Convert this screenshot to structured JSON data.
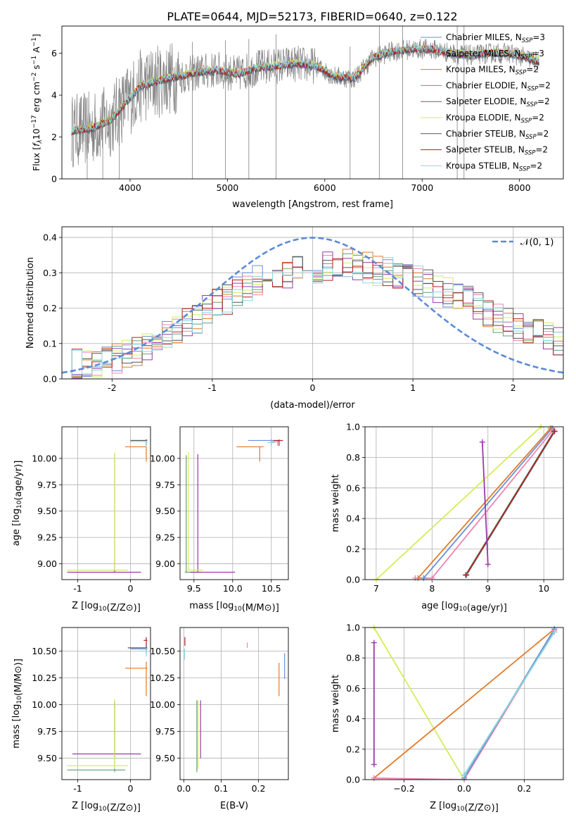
{
  "figure_title": "PLATE=0644, MJD=52173, FIBERID=0640, z=0.122",
  "colors": {
    "chabrier_miles": "#6a8ed6",
    "salpeter_miles": "#f082b4",
    "kroupa_miles": "#e07a28",
    "chabrier_elodie": "#5f9e7a",
    "salpeter_elodie": "#9a3aa8",
    "kroupa_elodie": "#d4ec5a",
    "chabrier_stelib": "#555555",
    "salpeter_stelib": "#b22020",
    "kroupa_stelib": "#86d8e2",
    "data": "#808080",
    "normal": "#5b8ad6",
    "grid": "#b0b0b0"
  },
  "chart_data": [
    {
      "id": "spectrum",
      "type": "line",
      "title": "PLATE=0644, MJD=52173, FIBERID=0640, z=0.122",
      "xlabel": "wavelength [Angstrom, rest frame]",
      "ylabel": "Flux [f_λ 10^-17 erg cm^-2 s^-1 A^-1]",
      "xlim": [
        3300,
        8450
      ],
      "ylim": [
        0,
        7.3
      ],
      "xticks": [
        4000,
        5000,
        6000,
        7000,
        8000
      ],
      "yticks": [
        0,
        2,
        4,
        6
      ],
      "grid": false,
      "legend_position": "right",
      "legend": [
        "Chabrier MILES, N_SSP=3",
        "Salpeter MILES, N_SSP=3",
        "Kroupa MILES, N_SSP=2",
        "Chabrier ELODIE, N_SSP=2",
        "Salpeter ELODIE, N_SSP=2",
        "Kroupa ELODIE, N_SSP=2",
        "Chabrier STELIB, N_SSP=2",
        "Salpeter STELIB, N_SSP=2",
        "Kroupa STELIB, N_SSP=2"
      ],
      "continuum": {
        "x": [
          3400,
          3600,
          3800,
          3950,
          4100,
          4300,
          4500,
          4700,
          4900,
          5100,
          5300,
          5500,
          5700,
          5900,
          6100,
          6300,
          6500,
          6700,
          6900,
          7100,
          7300,
          7500,
          7700,
          7900,
          8200
        ],
        "y": [
          2.3,
          2.4,
          2.8,
          3.6,
          4.4,
          4.7,
          4.9,
          5.1,
          5.2,
          5.0,
          5.3,
          5.4,
          5.5,
          5.4,
          4.9,
          4.8,
          5.8,
          6.1,
          6.2,
          6.2,
          6.0,
          5.9,
          6.0,
          6.0,
          5.6
        ]
      },
      "data_spikes_x": [
        3560,
        3720,
        3890,
        4640,
        4980,
        5220,
        5500,
        6260,
        6560,
        6800,
        7360,
        7430
      ]
    },
    {
      "id": "residuals",
      "type": "histogram",
      "xlabel": "(data-model)/error",
      "ylabel": "Normed distribution",
      "xlim": [
        -2.5,
        2.5
      ],
      "ylim": [
        0,
        0.43
      ],
      "xticks": [
        -2,
        -1,
        0,
        1,
        2
      ],
      "yticks": [
        0.0,
        0.1,
        0.2,
        0.3,
        0.4
      ],
      "grid": true,
      "legend": [
        "𝒩(0, 1)"
      ],
      "legend_position": "top-right",
      "bin_width": 0.1,
      "histogram_envelope": {
        "x": [
          -2.5,
          -2.0,
          -1.5,
          -1.0,
          -0.5,
          0.0,
          0.3,
          0.6,
          1.0,
          1.5,
          2.0,
          2.5
        ],
        "y": [
          0.035,
          0.05,
          0.11,
          0.2,
          0.29,
          0.31,
          0.33,
          0.31,
          0.28,
          0.23,
          0.15,
          0.1
        ]
      },
      "normal_curve": {
        "mean": 0,
        "sigma": 1
      }
    },
    {
      "id": "age_vs_Z",
      "type": "errorbar",
      "xlabel": "Z [log10(Z/Z⊙)]",
      "ylabel": "age [log10(age/yr)]",
      "xlim": [
        -1.3,
        0.38
      ],
      "ylim": [
        8.85,
        10.3
      ],
      "xticks": [
        -1,
        0
      ],
      "yticks": [
        9.0,
        9.25,
        9.5,
        9.75,
        10.0
      ],
      "grid": true,
      "points": [
        {
          "s": "chabrier_miles",
          "x": 0.3,
          "xe": [
            0.3,
            0.3
          ],
          "y": 10.17,
          "ye": [
            10.15,
            10.18
          ]
        },
        {
          "s": "salpeter_miles",
          "x": 0.3,
          "xe": [
            0.3,
            0.3
          ],
          "y": 10.17,
          "ye": [
            10.14,
            10.18
          ]
        },
        {
          "s": "kroupa_miles",
          "x": 0.3,
          "xe": [
            -0.1,
            0.3
          ],
          "y": 10.11,
          "ye": [
            9.97,
            10.11
          ]
        },
        {
          "s": "chabrier_elodie",
          "x": 0.3,
          "xe": [
            0.0,
            0.32
          ],
          "y": 10.17,
          "ye": [
            10.12,
            10.18
          ]
        },
        {
          "s": "salpeter_elodie",
          "x": -0.3,
          "xe": [
            -1.2,
            0.2
          ],
          "y": 8.92,
          "ye": [
            8.92,
            10.04
          ]
        },
        {
          "s": "kroupa_elodie",
          "x": -0.3,
          "xe": [
            -1.2,
            -0.05
          ],
          "y": 8.94,
          "ye": [
            8.94,
            10.06
          ]
        },
        {
          "s": "chabrier_stelib",
          "x": 0.3,
          "xe": [
            0.0,
            0.32
          ],
          "y": 10.17,
          "ye": [
            10.12,
            10.18
          ]
        },
        {
          "s": "kroupa_stelib",
          "x": 0.3,
          "xe": [
            0.0,
            0.32
          ],
          "y": 10.16,
          "ye": [
            10.12,
            10.17
          ]
        }
      ]
    },
    {
      "id": "age_vs_mass",
      "type": "errorbar",
      "xlabel": "mass [log10(M/M⊙)]",
      "ylabel": "",
      "xlim": [
        9.32,
        10.72
      ],
      "ylim": [
        8.85,
        10.3
      ],
      "xticks": [
        9.5,
        10.0,
        10.5
      ],
      "yticks": [
        9.0,
        9.25,
        9.5,
        9.75,
        10.0
      ],
      "grid": true,
      "points": [
        {
          "s": "chabrier_miles",
          "x": 10.5,
          "xe": [
            10.2,
            10.55
          ],
          "y": 10.17,
          "ye": [
            10.12,
            10.18
          ]
        },
        {
          "s": "salpeter_miles",
          "x": 10.58,
          "xe": [
            10.5,
            10.6
          ],
          "y": 10.16,
          "ye": [
            10.12,
            10.17
          ]
        },
        {
          "s": "kroupa_miles",
          "x": 10.35,
          "xe": [
            10.05,
            10.4
          ],
          "y": 10.11,
          "ye": [
            9.97,
            10.11
          ]
        },
        {
          "s": "chabrier_elodie",
          "x": 9.4,
          "xe": [
            9.38,
            9.6
          ],
          "y": 8.92,
          "ye": [
            8.92,
            10.03
          ]
        },
        {
          "s": "salpeter_elodie",
          "x": 9.55,
          "xe": [
            9.45,
            10.03
          ],
          "y": 8.92,
          "ye": [
            8.92,
            10.04
          ]
        },
        {
          "s": "kroupa_elodie",
          "x": 9.43,
          "xe": [
            9.4,
            9.62
          ],
          "y": 8.94,
          "ye": [
            8.94,
            10.06
          ]
        },
        {
          "s": "salpeter_stelib",
          "x": 10.6,
          "xe": [
            10.53,
            10.65
          ],
          "y": 10.17,
          "ye": [
            10.12,
            10.18
          ]
        },
        {
          "s": "kroupa_stelib",
          "x": 10.5,
          "xe": [
            10.45,
            10.55
          ],
          "y": 10.15,
          "ye": [
            10.12,
            10.17
          ]
        }
      ]
    },
    {
      "id": "weight_vs_age",
      "type": "line",
      "xlabel": "age [log10(age/yr)]",
      "ylabel": "mass weight",
      "xlim": [
        6.8,
        10.35
      ],
      "ylim": [
        0,
        1.0
      ],
      "xticks": [
        7,
        8,
        9,
        10
      ],
      "yticks": [
        0.0,
        0.2,
        0.4,
        0.6,
        0.8,
        1.0
      ],
      "grid": true,
      "series": [
        {
          "s": "kroupa_elodie",
          "x": [
            7.0,
            9.95
          ],
          "y": [
            0.0,
            1.0
          ]
        },
        {
          "s": "kroupa_miles",
          "x": [
            7.75,
            10.12
          ],
          "y": [
            0.01,
            0.99
          ]
        },
        {
          "s": "chabrier_miles",
          "x": [
            7.85,
            10.15
          ],
          "y": [
            0.01,
            0.99
          ]
        },
        {
          "s": "salpeter_miles",
          "x": [
            7.7,
            8.0,
            10.17
          ],
          "y": [
            0.01,
            0.01,
            0.98
          ]
        },
        {
          "s": "chabrier_elodie",
          "x": [
            8.6,
            10.18
          ],
          "y": [
            0.03,
            0.97
          ]
        },
        {
          "s": "kroupa_stelib",
          "x": [
            8.62,
            10.2
          ],
          "y": [
            0.03,
            0.97
          ]
        },
        {
          "s": "chabrier_stelib",
          "x": [
            8.61,
            10.19
          ],
          "y": [
            0.03,
            0.97
          ]
        },
        {
          "s": "salpeter_stelib",
          "x": [
            8.61,
            10.19
          ],
          "y": [
            0.03,
            0.97
          ]
        },
        {
          "s": "salpeter_elodie",
          "x": [
            8.9,
            9.0
          ],
          "y": [
            0.9,
            0.1
          ]
        }
      ]
    },
    {
      "id": "mass_vs_Z",
      "type": "errorbar",
      "xlabel": "Z [log10(Z/Z⊙)]",
      "ylabel": "mass [log10(M/M⊙)]",
      "xlim": [
        -1.3,
        0.38
      ],
      "ylim": [
        9.3,
        10.72
      ],
      "xticks": [
        -1,
        0
      ],
      "yticks": [
        9.5,
        9.75,
        10.0,
        10.25,
        10.5
      ],
      "grid": true,
      "points": [
        {
          "s": "chabrier_miles",
          "x": 0.3,
          "xe": [
            0.0,
            0.32
          ],
          "y": 10.52,
          "ye": [
            10.48,
            10.55
          ]
        },
        {
          "s": "kroupa_miles",
          "x": 0.3,
          "xe": [
            -0.1,
            0.32
          ],
          "y": 10.34,
          "ye": [
            10.08,
            10.4
          ]
        },
        {
          "s": "chabrier_elodie",
          "x": -0.3,
          "xe": [
            -1.2,
            -0.1
          ],
          "y": 9.39,
          "ye": [
            9.37,
            10.02
          ]
        },
        {
          "s": "salpeter_elodie",
          "x": -0.3,
          "xe": [
            -1.1,
            0.2
          ],
          "y": 9.54,
          "ye": [
            9.5,
            10.04
          ]
        },
        {
          "s": "kroupa_elodie",
          "x": -0.3,
          "xe": [
            -1.2,
            -0.05
          ],
          "y": 9.43,
          "ye": [
            9.4,
            10.05
          ]
        },
        {
          "s": "chabrier_stelib",
          "x": 0.3,
          "xe": [
            -0.05,
            0.32
          ],
          "y": 10.53,
          "ye": [
            10.5,
            10.56
          ]
        },
        {
          "s": "salpeter_stelib",
          "x": 0.3,
          "xe": [
            0.25,
            0.32
          ],
          "y": 10.6,
          "ye": [
            10.55,
            10.63
          ]
        },
        {
          "s": "kroupa_stelib",
          "x": 0.3,
          "xe": [
            0.15,
            0.32
          ],
          "y": 10.5,
          "ye": [
            10.45,
            10.53
          ]
        }
      ]
    },
    {
      "id": "mass_vs_EBV",
      "type": "errorbar",
      "xlabel": "E(B-V)",
      "ylabel": "",
      "xlim": [
        -0.01,
        0.28
      ],
      "ylim": [
        9.3,
        10.72
      ],
      "xticks": [
        0.0,
        0.1,
        0.2
      ],
      "yticks": [
        9.5,
        9.75,
        10.0,
        10.25,
        10.5
      ],
      "grid": true,
      "points": [
        {
          "s": "chabrier_miles",
          "x": 0.27,
          "y": 10.36,
          "ye": [
            10.24,
            10.48
          ]
        },
        {
          "s": "salpeter_miles",
          "x": 0.17,
          "y": 10.56,
          "ye": [
            10.53,
            10.58
          ]
        },
        {
          "s": "kroupa_miles",
          "x": 0.255,
          "y": 10.24,
          "ye": [
            10.08,
            10.39
          ]
        },
        {
          "s": "chabrier_elodie",
          "x": 0.035,
          "y": 9.7,
          "ye": [
            9.37,
            10.04
          ]
        },
        {
          "s": "salpeter_elodie",
          "x": 0.045,
          "y": 9.77,
          "ye": [
            9.5,
            10.04
          ]
        },
        {
          "s": "kroupa_elodie",
          "x": 0.038,
          "y": 9.72,
          "ye": [
            9.4,
            10.04
          ]
        },
        {
          "s": "salpeter_stelib",
          "x": 0.003,
          "y": 10.6,
          "ye": [
            10.55,
            10.63
          ]
        },
        {
          "s": "kroupa_stelib",
          "x": 0.002,
          "y": 10.48,
          "ye": [
            10.42,
            10.52
          ]
        }
      ]
    },
    {
      "id": "weight_vs_Z",
      "type": "line",
      "xlabel": "Z [log10(Z/Z⊙)]",
      "ylabel": "mass weight",
      "xlim": [
        -0.33,
        0.33
      ],
      "ylim": [
        0,
        1.0
      ],
      "xticks": [
        -0.2,
        0.0,
        0.2
      ],
      "yticks": [
        0.0,
        0.2,
        0.4,
        0.6,
        0.8,
        1.0
      ],
      "grid": true,
      "series": [
        {
          "s": "kroupa_elodie",
          "x": [
            -0.3,
            0.0
          ],
          "y": [
            1.0,
            0.0
          ]
        },
        {
          "s": "kroupa_miles",
          "x": [
            -0.3,
            0.3
          ],
          "y": [
            0.01,
            0.99
          ]
        },
        {
          "s": "salpeter_miles",
          "x": [
            -0.3,
            0.0,
            0.3
          ],
          "y": [
            0.01,
            0.0,
            0.98
          ]
        },
        {
          "s": "chabrier_miles",
          "x": [
            0.0,
            0.3
          ],
          "y": [
            0.01,
            0.99
          ]
        },
        {
          "s": "chabrier_elodie",
          "x": [
            0.0,
            0.3
          ],
          "y": [
            0.03,
            0.97
          ]
        },
        {
          "s": "kroupa_stelib",
          "x": [
            0.0,
            0.3
          ],
          "y": [
            0.03,
            0.97
          ]
        },
        {
          "s": "salpeter_elodie",
          "x": [
            -0.3,
            -0.3
          ],
          "y": [
            0.9,
            0.1
          ]
        }
      ]
    }
  ]
}
